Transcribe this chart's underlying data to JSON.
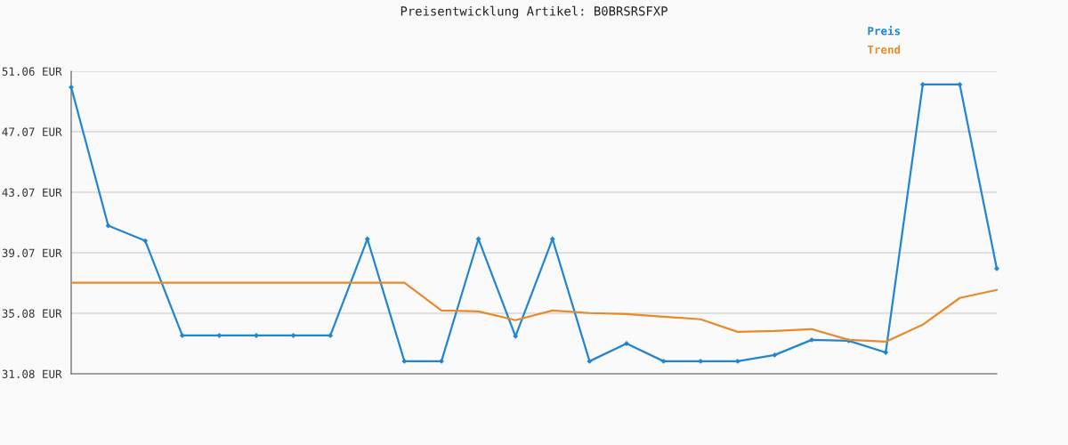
{
  "chart_data": {
    "type": "line",
    "title": "Preisentwicklung Artikel: B0BRSRSFXP",
    "categories": [
      null,
      null,
      null,
      null,
      null,
      null,
      null,
      null,
      null,
      null,
      null,
      null,
      null,
      null,
      null,
      null,
      null,
      null,
      null,
      null,
      null,
      null,
      null,
      null,
      null,
      null
    ],
    "series": [
      {
        "name": "Preis",
        "color": "#2185d0",
        "marker": "diamond",
        "values": [
          50.0,
          40.86,
          39.86,
          33.61,
          33.61,
          33.61,
          33.61,
          33.61,
          39.98,
          31.91,
          31.91,
          39.98,
          33.56,
          39.98,
          31.91,
          33.08,
          31.91,
          31.91,
          31.91,
          32.32,
          33.32,
          33.26,
          32.49,
          50.18,
          50.18,
          38.03
        ]
      },
      {
        "name": "Trend",
        "color": "#e8892a",
        "marker": "none",
        "values": [
          37.09,
          37.09,
          37.09,
          37.09,
          37.09,
          37.09,
          37.09,
          37.09,
          37.09,
          37.09,
          35.26,
          35.2,
          34.62,
          35.26,
          35.09,
          35.03,
          34.85,
          34.68,
          33.85,
          33.91,
          34.03,
          33.32,
          33.2,
          34.32,
          36.09,
          36.62
        ]
      }
    ],
    "ylim": [
      31.08,
      51.06
    ],
    "yticks": [
      {
        "value": 31.08,
        "label": "31.08 EUR"
      },
      {
        "value": 35.08,
        "label": "35.08 EUR"
      },
      {
        "value": 39.07,
        "label": "39.07 EUR"
      },
      {
        "value": 43.07,
        "label": "43.07 EUR"
      },
      {
        "value": 47.07,
        "label": "47.07 EUR"
      },
      {
        "value": 51.06,
        "label": "51.06 EUR"
      }
    ],
    "grid": "y",
    "legend": "top right",
    "tick_labels": "y",
    "line_style": "solid"
  }
}
